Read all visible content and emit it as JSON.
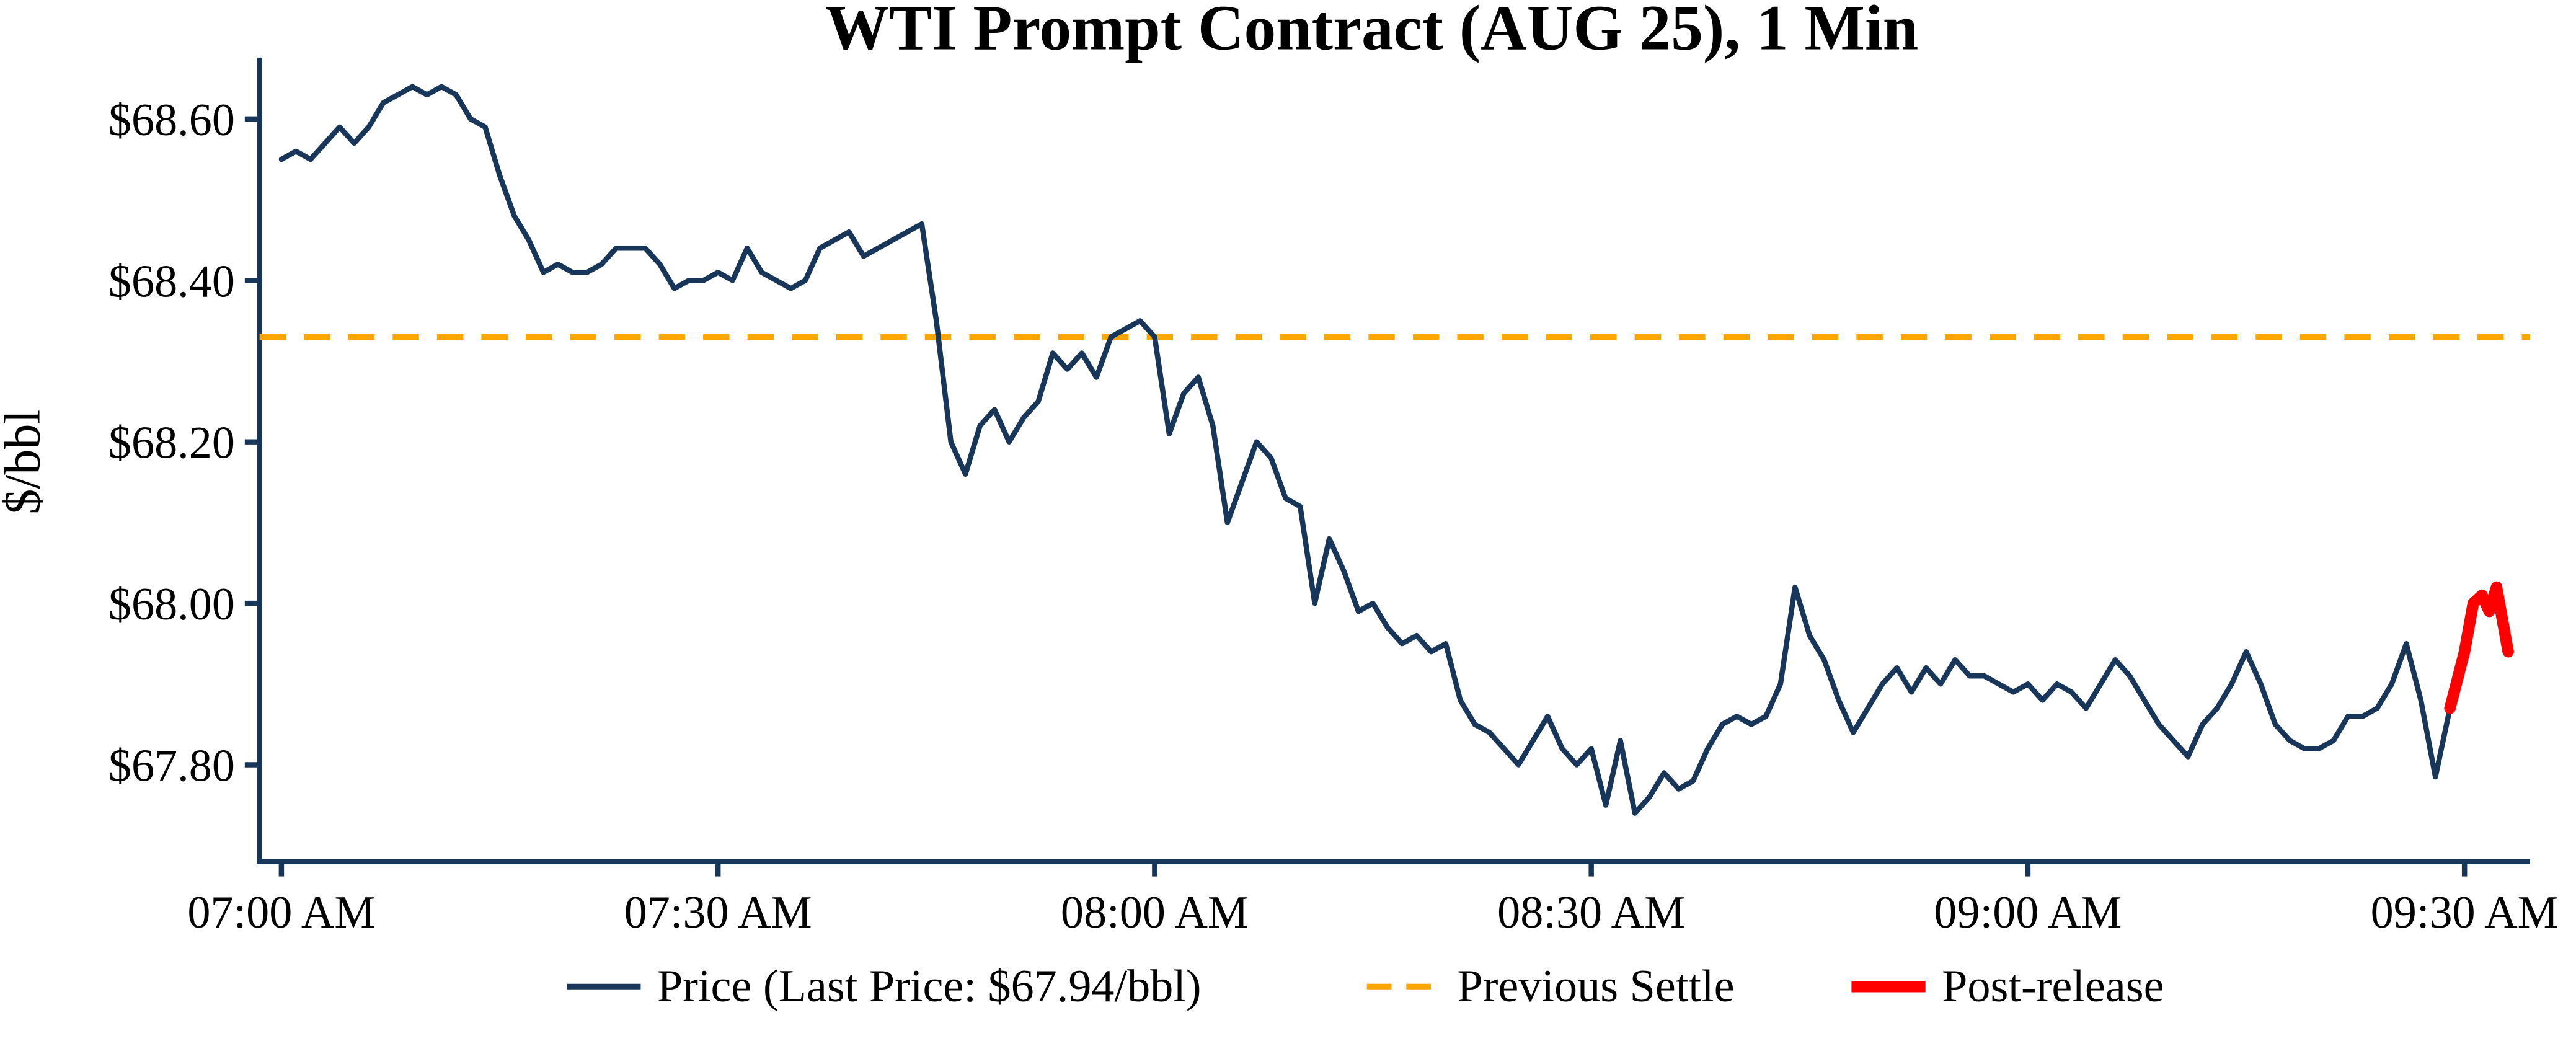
{
  "colors": {
    "price": "#18365a",
    "axis": "#18365a",
    "previous_settle": "#FFA500",
    "post_release": "#FF0000",
    "text": "#000000",
    "background": "#FFFFFF"
  },
  "chart_data": {
    "type": "line",
    "title": "WTI Prompt Contract (AUG 25), 1 Min",
    "xlabel": "",
    "ylabel": "$/bbl",
    "x_unit": "minutes after 07:00 AM",
    "x_range": [
      -1.5,
      154.5
    ],
    "y_range": [
      67.68,
      68.67
    ],
    "grid": "off",
    "previous_settle": 68.33,
    "last_price": 67.94,
    "x_ticks": [
      {
        "t": 0,
        "label": "07:00 AM"
      },
      {
        "t": 30,
        "label": "07:30 AM"
      },
      {
        "t": 60,
        "label": "08:00 AM"
      },
      {
        "t": 90,
        "label": "08:30 AM"
      },
      {
        "t": 120,
        "label": "09:00 AM"
      },
      {
        "t": 150,
        "label": "09:30 AM"
      }
    ],
    "y_ticks": [
      {
        "v": 67.8,
        "label": "$67.80"
      },
      {
        "v": 68.0,
        "label": "$68.00"
      },
      {
        "v": 68.2,
        "label": "$68.20"
      },
      {
        "v": 68.4,
        "label": "$68.40"
      },
      {
        "v": 68.6,
        "label": "$68.60"
      }
    ],
    "series": [
      {
        "name": "Price (Last Price: $67.94/bbl)",
        "style": "solid",
        "t_start": 0,
        "t_step": 1,
        "values": [
          68.55,
          68.56,
          68.55,
          68.57,
          68.59,
          68.57,
          68.59,
          68.62,
          68.63,
          68.64,
          68.63,
          68.64,
          68.63,
          68.6,
          68.59,
          68.53,
          68.48,
          68.45,
          68.41,
          68.42,
          68.41,
          68.41,
          68.42,
          68.44,
          68.44,
          68.44,
          68.42,
          68.39,
          68.4,
          68.4,
          68.41,
          68.4,
          68.44,
          68.41,
          68.4,
          68.39,
          68.4,
          68.44,
          68.45,
          68.46,
          68.43,
          68.44,
          68.45,
          68.46,
          68.47,
          68.35,
          68.2,
          68.16,
          68.22,
          68.24,
          68.2,
          68.23,
          68.25,
          68.31,
          68.29,
          68.31,
          68.28,
          68.33,
          68.34,
          68.35,
          68.33,
          68.21,
          68.26,
          68.28,
          68.22,
          68.1,
          68.15,
          68.2,
          68.18,
          68.13,
          68.12,
          68.0,
          68.08,
          68.04,
          67.99,
          68.0,
          67.97,
          67.95,
          67.96,
          67.94,
          67.95,
          67.88,
          67.85,
          67.84,
          67.82,
          67.8,
          67.83,
          67.86,
          67.82,
          67.8,
          67.82,
          67.75,
          67.83,
          67.74,
          67.76,
          67.79,
          67.77,
          67.78,
          67.82,
          67.85,
          67.86,
          67.85,
          67.86,
          67.9,
          68.02,
          67.96,
          67.93,
          67.88,
          67.84,
          67.87,
          67.9,
          67.92,
          67.89,
          67.92,
          67.9,
          67.93,
          67.91,
          67.91,
          67.9,
          67.89,
          67.9,
          67.88,
          67.9,
          67.89,
          67.87,
          67.9,
          67.93,
          67.91,
          67.88,
          67.85,
          67.83,
          67.81,
          67.85,
          67.87,
          67.9,
          67.94,
          67.9,
          67.85,
          67.83,
          67.82,
          67.82,
          67.83,
          67.86,
          67.86,
          67.87,
          67.9,
          67.95,
          67.88,
          67.785,
          67.87
        ]
      },
      {
        "name": "Previous Settle",
        "style": "dashed-horizontal",
        "value": 68.33
      },
      {
        "name": "Post-release",
        "style": "thick-solid",
        "t": [
          149,
          150,
          150.6,
          151.2,
          151.7,
          152.2,
          153
        ],
        "values": [
          67.87,
          67.94,
          68.0,
          68.01,
          67.99,
          68.02,
          67.94
        ]
      }
    ],
    "legend": {
      "position": "bottom-center",
      "items": [
        {
          "label": "Price (Last Price: $67.94/bbl)",
          "style": "solid",
          "color": "#18365a"
        },
        {
          "label": "Previous Settle",
          "style": "dashed",
          "color": "#FFA500"
        },
        {
          "label": "Post-release",
          "style": "thick",
          "color": "#FF0000"
        }
      ]
    }
  }
}
